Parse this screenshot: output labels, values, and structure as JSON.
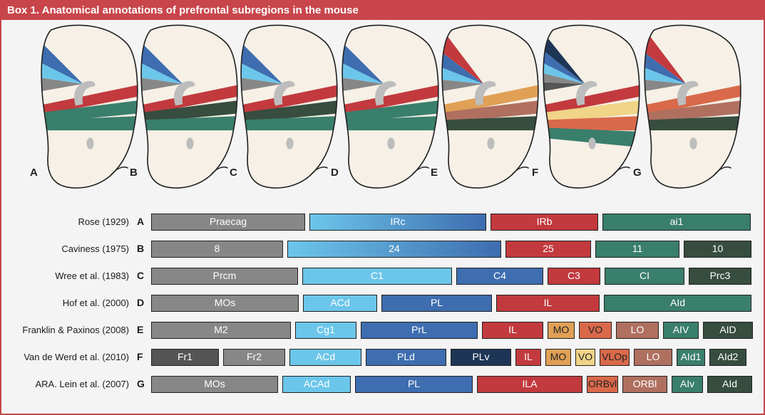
{
  "title": "Box 1. Anatomical annotations of prefrontal subregions in the mouse",
  "panel_letters": [
    "A",
    "B",
    "C",
    "D",
    "E",
    "F",
    "G"
  ],
  "colors": {
    "brand_red": "#c8464b",
    "gray": "#878787",
    "dark_gray": "#555555",
    "light_blue": "#6cc6ea",
    "mid_blue": "#3e6db0",
    "navy": "#1d3656",
    "red": "#c23a3e",
    "teal": "#3a7e6c",
    "dark_green": "#364d3f",
    "orange": "#e0a055",
    "yellow": "#f0d488",
    "orange_red": "#d9694a",
    "brown": "#b07060",
    "cream": "#f6f0e6"
  },
  "rows": [
    {
      "source": "Rose (1929)",
      "letter": "A",
      "segments": [
        {
          "label": "Praecag",
          "color": "#878787"
        },
        {
          "label": "IRc",
          "color": "gradient-blue"
        },
        {
          "label": "IRb",
          "color": "#c23a3e"
        },
        {
          "label": "ai1",
          "color": "#3a7e6c"
        }
      ]
    },
    {
      "source": "Caviness (1975)",
      "letter": "B",
      "segments": [
        {
          "label": "8",
          "color": "#878787"
        },
        {
          "label": "24",
          "color": "gradient-blue"
        },
        {
          "label": "25",
          "color": "#c23a3e"
        },
        {
          "label": "11",
          "color": "#3a7e6c"
        },
        {
          "label": "10",
          "color": "#364d3f"
        }
      ]
    },
    {
      "source": "Wree et al. (1983)",
      "letter": "C",
      "segments": [
        {
          "label": "Prcm",
          "color": "#878787"
        },
        {
          "label": "C1",
          "color": "#6cc6ea"
        },
        {
          "label": "C4",
          "color": "#3e6db0"
        },
        {
          "label": "C3",
          "color": "#c23a3e"
        },
        {
          "label": "CI",
          "color": "#3a7e6c"
        },
        {
          "label": "Prc3",
          "color": "#364d3f"
        }
      ]
    },
    {
      "source": "Hof et al. (2000)",
      "letter": "D",
      "segments": [
        {
          "label": "MOs",
          "color": "#878787"
        },
        {
          "label": "ACd",
          "color": "#6cc6ea"
        },
        {
          "label": "PL",
          "color": "#3e6db0"
        },
        {
          "label": "IL",
          "color": "#c23a3e"
        },
        {
          "label": "AId",
          "color": "#3a7e6c"
        }
      ]
    },
    {
      "source": "Franklin & Paxinos (2008)",
      "letter": "E",
      "segments": [
        {
          "label": "M2",
          "color": "#878787"
        },
        {
          "label": "Cg1",
          "color": "#6cc6ea"
        },
        {
          "label": "PrL",
          "color": "#3e6db0"
        },
        {
          "label": "IL",
          "color": "#c23a3e"
        },
        {
          "label": "MO",
          "color": "#e0a055"
        },
        {
          "label": "VO",
          "color": "#d9694a"
        },
        {
          "label": "LO",
          "color": "#b07060"
        },
        {
          "label": "AIV",
          "color": "#3a7e6c"
        },
        {
          "label": "AID",
          "color": "#364d3f"
        }
      ]
    },
    {
      "source": "Van de Werd et al. (2010)",
      "letter": "F",
      "segments": [
        {
          "label": "Fr1",
          "color": "#555555"
        },
        {
          "label": "Fr2",
          "color": "#878787"
        },
        {
          "label": "ACd",
          "color": "#6cc6ea"
        },
        {
          "label": "PLd",
          "color": "#3e6db0"
        },
        {
          "label": "PLv",
          "color": "#1d3656"
        },
        {
          "label": "IL",
          "color": "#c23a3e"
        },
        {
          "label": "MO",
          "color": "#e0a055"
        },
        {
          "label": "VO",
          "color": "#f0d488"
        },
        {
          "label": "VLOp",
          "color": "#d9694a"
        },
        {
          "label": "LO",
          "color": "#b07060"
        },
        {
          "label": "AId1",
          "color": "#3a7e6c"
        },
        {
          "label": "AId2",
          "color": "#364d3f"
        }
      ]
    },
    {
      "source": "ARA. Lein et al. (2007)",
      "letter": "G",
      "segments": [
        {
          "label": "MOs",
          "color": "#878787"
        },
        {
          "label": "ACAd",
          "color": "#6cc6ea"
        },
        {
          "label": "PL",
          "color": "#3e6db0"
        },
        {
          "label": "ILA",
          "color": "#c23a3e"
        },
        {
          "label": "ORBvl",
          "color": "#d9694a"
        },
        {
          "label": "ORBl",
          "color": "#b07060"
        },
        {
          "label": "AIv",
          "color": "#3a7e6c"
        },
        {
          "label": "AId",
          "color": "#364d3f"
        }
      ]
    }
  ]
}
